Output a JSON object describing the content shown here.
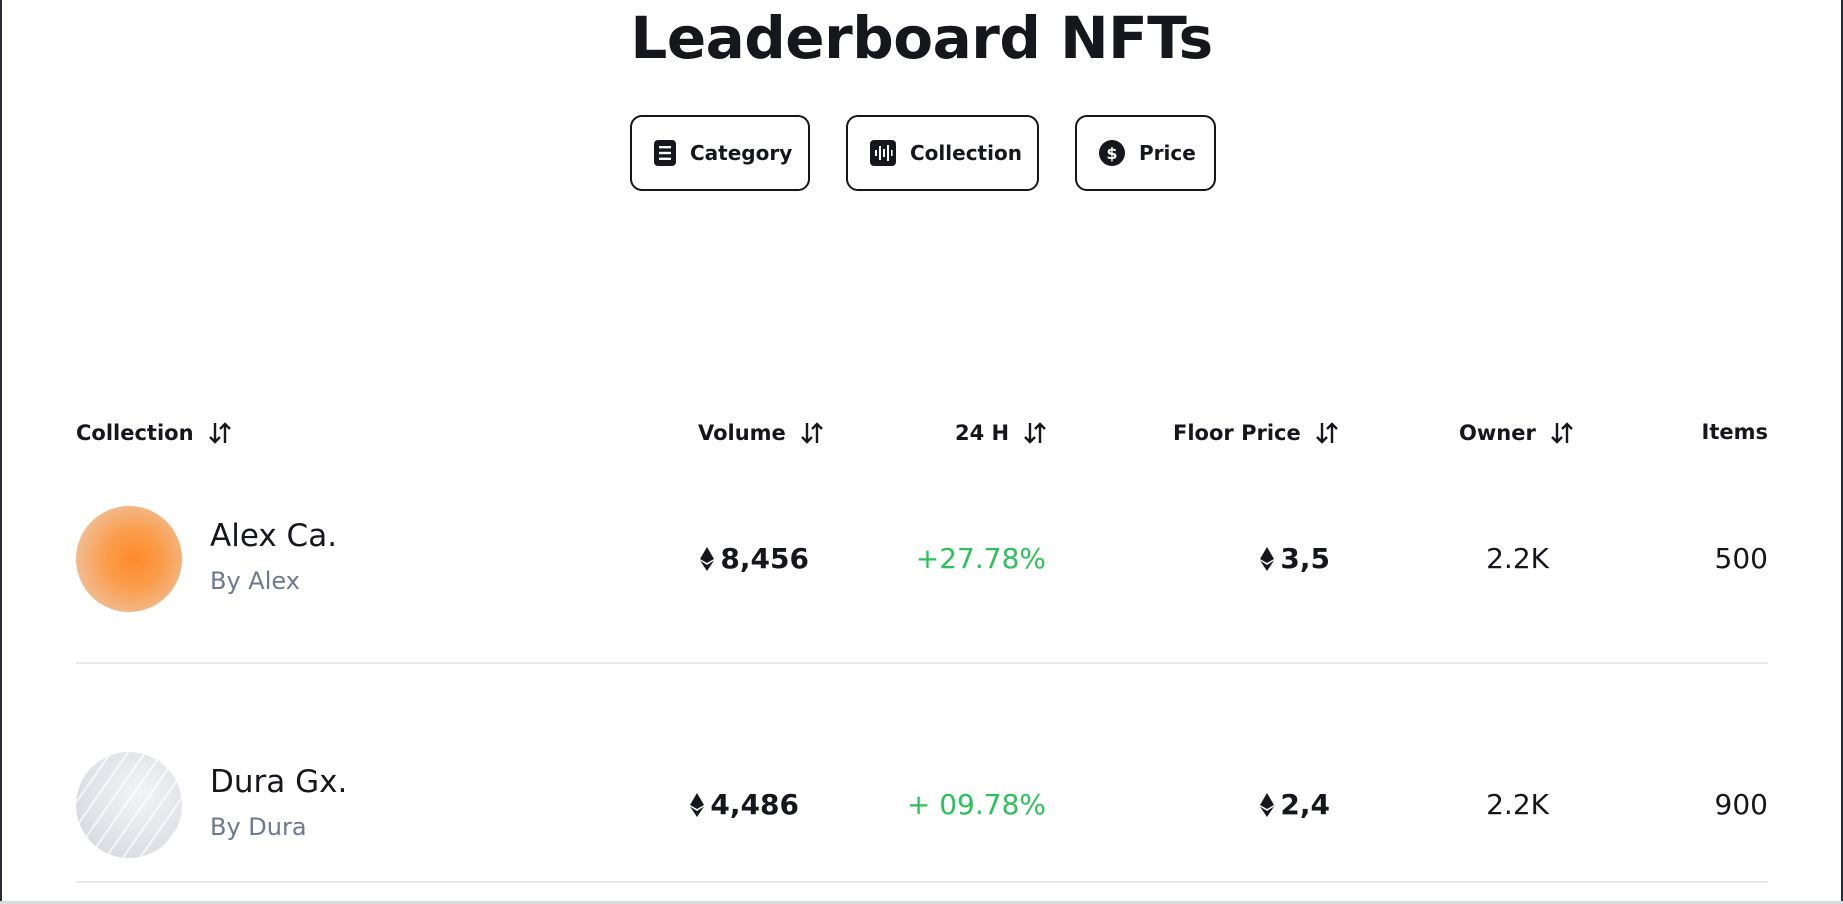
{
  "page": {
    "title": "Leaderboard NFTs"
  },
  "filters": [
    {
      "label": "Category",
      "icon": "document-icon"
    },
    {
      "label": "Collection",
      "icon": "soundwave-icon"
    },
    {
      "label": "Price",
      "icon": "dollar-coin-icon"
    }
  ],
  "table": {
    "headers": {
      "collection": "Collection",
      "volume": "Volume",
      "change": "24 H",
      "floor": "Floor Price",
      "owner": "Owner",
      "items": "Items"
    },
    "rows": [
      {
        "name": "Alex Ca.",
        "by": "By Alex",
        "volume": "8,456",
        "change": "+27.78%",
        "floor": "3,5",
        "owner": "2.2K",
        "items": "500"
      },
      {
        "name": "Dura Gx.",
        "by": "By Dura",
        "volume": "4,486",
        "change": "+ 09.78%",
        "floor": "2,4",
        "owner": "2.2K",
        "items": "900"
      }
    ]
  },
  "colors": {
    "accent_green": "#2cc25a",
    "muted": "#6b7a90",
    "text": "#15171c"
  }
}
